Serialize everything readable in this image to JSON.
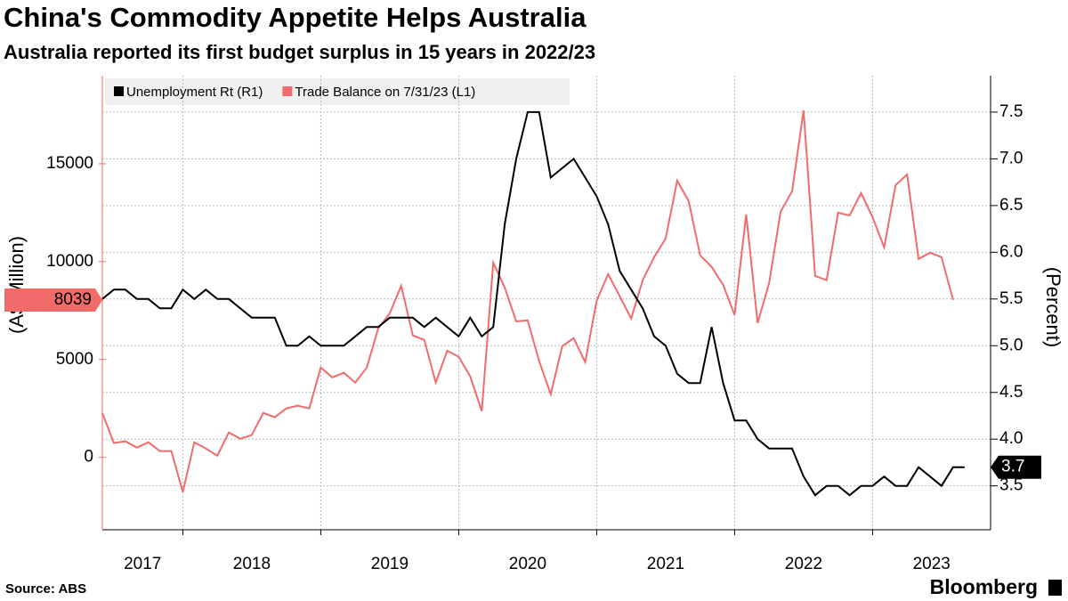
{
  "title": "China's Commodity Appetite Helps Australia",
  "subtitle": "Australia reported its first budget surplus in 15 years in 2022/23",
  "source": "Source: ABS",
  "brand": "Bloomberg",
  "chart_data": {
    "type": "line",
    "ylabel": "(A$ Million)",
    "y2label": "(Percent)",
    "categories": [
      "2017",
      null,
      null,
      null,
      null,
      null,
      null,
      "2018",
      null,
      null,
      null,
      null,
      null,
      null,
      null,
      null,
      null,
      null,
      null,
      "2019",
      null,
      null,
      null,
      null,
      null,
      null,
      null,
      null,
      null,
      null,
      null,
      "2020",
      null,
      null,
      null,
      null,
      null,
      null,
      null,
      null,
      null,
      null,
      null,
      "2021",
      null,
      null,
      null,
      null,
      null,
      null,
      null,
      null,
      null,
      null,
      null,
      "2022",
      null,
      null,
      null,
      null,
      null,
      null,
      null,
      null,
      null,
      null,
      null,
      "2023",
      null,
      null,
      null,
      null,
      null,
      null,
      null,
      null
    ],
    "ylim": [
      -3700,
      19500
    ],
    "yticks": [
      0,
      5000,
      10000,
      15000
    ],
    "y2lim": [
      3.03,
      7.89
    ],
    "y2ticks": [
      3.5,
      {
        "value": 4,
        "label": "4.0"
      },
      4.5,
      {
        "value": 5,
        "label": "5.0"
      },
      5.5,
      {
        "value": 6,
        "label": "6.0"
      },
      6.5,
      {
        "value": 7,
        "label": "7.0"
      },
      7.5
    ],
    "grid": true,
    "series": [
      {
        "name": "Unemployment Rt (R1)",
        "color": "#000000",
        "axis": "y2",
        "values": [
          5.5,
          5.6,
          5.6,
          5.5,
          5.5,
          5.4,
          5.4,
          5.6,
          5.5,
          5.6,
          5.5,
          5.5,
          5.4,
          5.3,
          5.3,
          5.3,
          5.0,
          5.0,
          5.1,
          5.0,
          5.0,
          5.0,
          5.1,
          5.2,
          5.2,
          5.3,
          5.3,
          5.3,
          5.2,
          5.3,
          5.2,
          5.1,
          5.3,
          5.1,
          5.2,
          6.3,
          7.0,
          7.5,
          7.5,
          6.8,
          6.9,
          7.0,
          6.8,
          6.6,
          6.3,
          5.8,
          5.6,
          5.4,
          5.1,
          5.0,
          4.7,
          4.6,
          4.6,
          5.2,
          4.6,
          4.2,
          4.2,
          4.0,
          3.9,
          3.9,
          3.9,
          3.6,
          3.4,
          3.5,
          3.5,
          3.4,
          3.5,
          3.5,
          3.6,
          3.5,
          3.5,
          3.7,
          3.6,
          3.5,
          3.7,
          3.7
        ]
      },
      {
        "name": "Trade Balance on 7/31/23 (L1)",
        "color": "#f26b6b",
        "axis": "y",
        "values": [
          2270,
          730,
          820,
          500,
          770,
          320,
          320,
          -1770,
          770,
          450,
          90,
          1270,
          950,
          1140,
          2270,
          2050,
          2500,
          2640,
          2500,
          4590,
          4090,
          4320,
          3820,
          4590,
          6590,
          7360,
          8770,
          6230,
          6000,
          3820,
          5450,
          5140,
          4140,
          2360,
          9950,
          8680,
          6950,
          7000,
          4910,
          3230,
          5680,
          6090,
          4860,
          8000,
          9360,
          8230,
          7090,
          9050,
          10230,
          11180,
          14140,
          13090,
          10320,
          9730,
          8820,
          7270,
          12410,
          6860,
          8910,
          12550,
          13590,
          17730,
          9270,
          9050,
          12500,
          12360,
          13500,
          12270,
          10730,
          13910,
          14450,
          10140,
          10450,
          10230,
          8039,
          null
        ]
      }
    ]
  }
}
